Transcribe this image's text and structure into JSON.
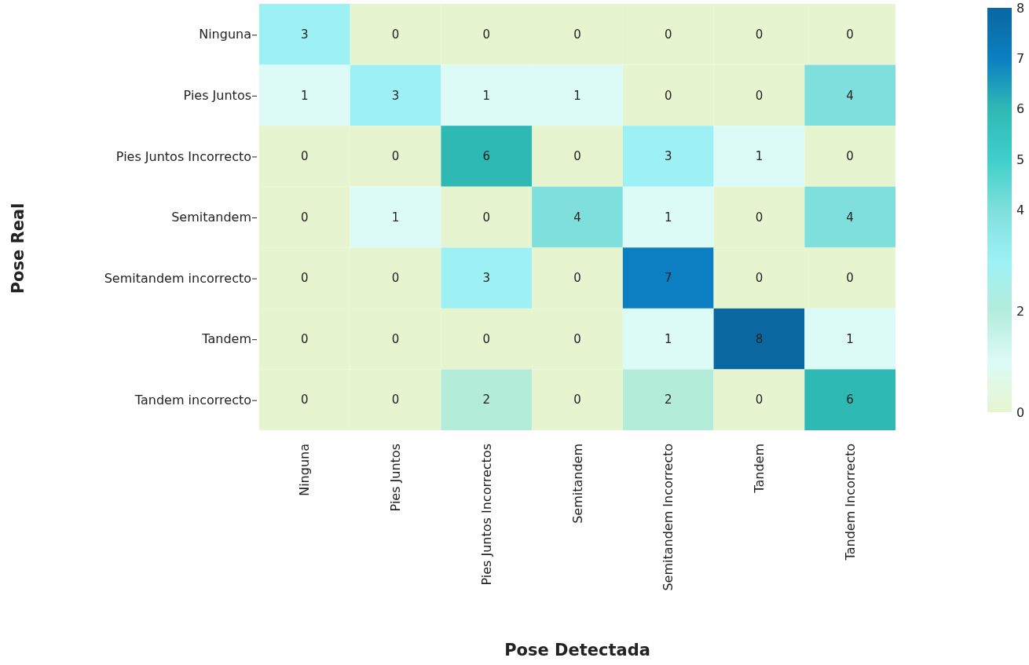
{
  "chart_data": {
    "type": "heatmap",
    "xlabel": "Pose Detectada",
    "ylabel": "Pose Real",
    "categories": [
      "Ninguna",
      "Pies Juntos",
      "Pies Juntos Incorrectos",
      "Semitandem",
      "Semitandem Incorrecto",
      "Tandem",
      "Tandem Incorrecto"
    ],
    "y_categories": [
      "Ninguna",
      "Pies Juntos",
      "Pies Juntos Incorrecto",
      "Semitandem",
      "Semitandem incorrecto",
      "Tandem",
      "Tandem incorrecto"
    ],
    "cells": [
      [
        3,
        0,
        0,
        0,
        0,
        0,
        0
      ],
      [
        1,
        3,
        1,
        1,
        0,
        0,
        4
      ],
      [
        0,
        0,
        6,
        0,
        3,
        1,
        0
      ],
      [
        0,
        1,
        0,
        4,
        1,
        0,
        4
      ],
      [
        0,
        0,
        3,
        0,
        7,
        0,
        0
      ],
      [
        0,
        0,
        0,
        0,
        1,
        8,
        1
      ],
      [
        0,
        0,
        2,
        0,
        2,
        0,
        6
      ]
    ],
    "clim": [
      0,
      8
    ],
    "cticks": [
      0,
      2,
      4,
      5,
      6,
      7,
      8
    ],
    "data_labels": true
  }
}
